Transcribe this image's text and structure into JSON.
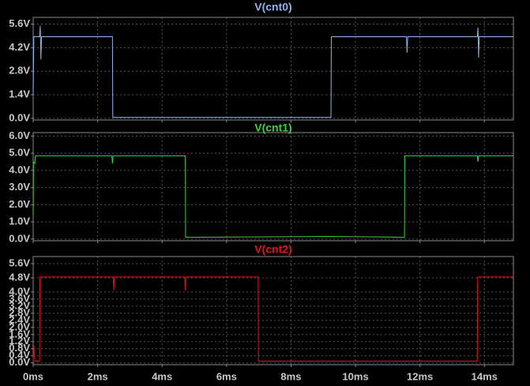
{
  "chart_data": [
    {
      "type": "line",
      "title": "V(cnt0)",
      "color": "#8fb4ea",
      "x": [
        0,
        0.02,
        0.2,
        0.22,
        0.24,
        0.26,
        2.46,
        2.47,
        9.24,
        9.25,
        11.58,
        11.6,
        11.62,
        13.78,
        13.8,
        13.82,
        13.84,
        14.9
      ],
      "values": [
        1.4,
        4.85,
        4.85,
        5.5,
        3.5,
        4.85,
        4.85,
        0.05,
        0.05,
        4.85,
        4.85,
        3.9,
        4.85,
        4.85,
        5.4,
        3.6,
        4.85,
        4.85
      ],
      "xlim": [
        0,
        14.9
      ],
      "ylim": [
        -0.1,
        6.0
      ],
      "yticks": [
        {
          "value": 0,
          "label": "0.0V"
        },
        {
          "value": 1.4,
          "label": "1.4V"
        },
        {
          "value": 2.8,
          "label": "2.8V"
        },
        {
          "value": 4.2,
          "label": "4.2V"
        },
        {
          "value": 5.6,
          "label": "5.6V"
        }
      ],
      "grid": true
    },
    {
      "type": "line",
      "title": "V(cnt1)",
      "color": "#3fd23f",
      "x": [
        0,
        0.01,
        0.05,
        0.07,
        0.2,
        2.44,
        2.46,
        2.48,
        4.72,
        4.73,
        9.0,
        11.0,
        11.52,
        11.53,
        13.78,
        13.8,
        13.82,
        14.9
      ],
      "values": [
        1.3,
        4.5,
        4.4,
        4.85,
        4.85,
        4.85,
        4.4,
        4.85,
        4.85,
        0.1,
        0.15,
        0.12,
        0.1,
        4.85,
        4.85,
        4.5,
        4.85,
        4.85
      ],
      "xlim": [
        0,
        14.9
      ],
      "ylim": [
        -0.1,
        6.2
      ],
      "yticks": [
        {
          "value": 0,
          "label": "0.0V"
        },
        {
          "value": 1,
          "label": "1.0V"
        },
        {
          "value": 2,
          "label": "2.0V"
        },
        {
          "value": 3,
          "label": "3.0V"
        },
        {
          "value": 4,
          "label": "4.0V"
        },
        {
          "value": 5,
          "label": "5.0V"
        },
        {
          "value": 6,
          "label": "6.0V"
        }
      ],
      "grid": true
    },
    {
      "type": "line",
      "title": "V(cnt2)",
      "color": "#e0141e",
      "x": [
        0,
        0.02,
        0.05,
        0.2,
        0.21,
        2.48,
        2.5,
        2.52,
        4.7,
        4.72,
        4.74,
        6.98,
        6.99,
        13.78,
        13.79,
        14.9
      ],
      "values": [
        0.1,
        1.0,
        0.1,
        0.1,
        4.85,
        4.85,
        4.1,
        4.85,
        4.85,
        4.1,
        4.85,
        4.85,
        0.1,
        0.1,
        4.85,
        4.85
      ],
      "xlim": [
        0,
        14.9
      ],
      "ylim": [
        -0.1,
        6.0
      ],
      "yticks": [
        {
          "value": 0,
          "label": "0.0V"
        },
        {
          "value": 0.4,
          "label": "0.4V"
        },
        {
          "value": 0.8,
          "label": "0.8V"
        },
        {
          "value": 1.2,
          "label": "1.2V"
        },
        {
          "value": 1.6,
          "label": "1.6V"
        },
        {
          "value": 2.0,
          "label": "2.0V"
        },
        {
          "value": 2.4,
          "label": "2.4V"
        },
        {
          "value": 2.8,
          "label": "2.8V"
        },
        {
          "value": 3.2,
          "label": "3.2V"
        },
        {
          "value": 3.6,
          "label": "3.6V"
        },
        {
          "value": 4.0,
          "label": "4.0V"
        },
        {
          "value": 4.8,
          "label": "4.8V"
        },
        {
          "value": 5.6,
          "label": "5.6V"
        }
      ],
      "xticks": [
        {
          "value": 0,
          "label": "0ms"
        },
        {
          "value": 2,
          "label": "2ms"
        },
        {
          "value": 4,
          "label": "4ms"
        },
        {
          "value": 6,
          "label": "6ms"
        },
        {
          "value": 8,
          "label": "8ms"
        },
        {
          "value": 10,
          "label": "10ms"
        },
        {
          "value": 12,
          "label": "12ms"
        },
        {
          "value": 14,
          "label": "14ms"
        }
      ],
      "grid": true
    }
  ]
}
